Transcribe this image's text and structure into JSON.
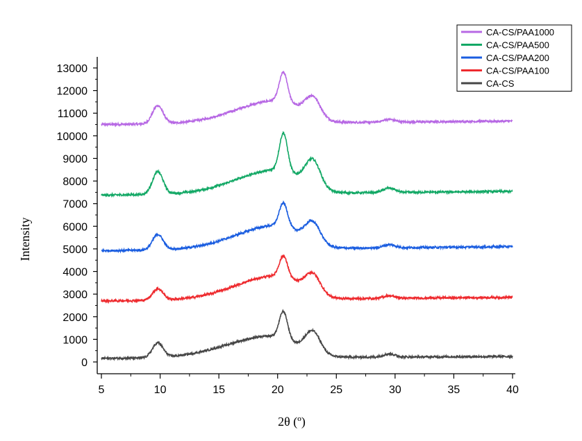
{
  "chart_data": {
    "type": "line",
    "title": "",
    "xlabel": "2θ (º)",
    "ylabel": "Intensity",
    "xlim": [
      5,
      40
    ],
    "ylim": [
      0,
      13000
    ],
    "xticks": [
      5,
      10,
      15,
      20,
      25,
      30,
      35,
      40
    ],
    "yticks": [
      0,
      1000,
      2000,
      3000,
      4000,
      5000,
      6000,
      7000,
      8000,
      9000,
      10000,
      11000,
      12000,
      13000
    ],
    "grid": false,
    "legend_position": "top-right",
    "peaks": [
      {
        "center": 9.8,
        "width": 0.45
      },
      {
        "center": 20.5,
        "width": 0.35
      },
      {
        "center": 23.0,
        "width": 0.65
      },
      {
        "center": 29.5,
        "width": 0.5
      }
    ],
    "series": [
      {
        "name": "CA-CS/PAA1000",
        "color": "#b768e4",
        "baseline": 10500,
        "end": 10650,
        "hump_amp": 1000,
        "hump_center": 20.0,
        "hump_width": 3.5,
        "peak_heights": [
          800,
          1280,
          900,
          120
        ]
      },
      {
        "name": "CA-CS/PAA500",
        "color": "#12a865",
        "baseline": 7380,
        "end": 7540,
        "hump_amp": 1050,
        "hump_center": 20.0,
        "hump_width": 3.5,
        "peak_heights": [
          1000,
          1650,
          1200,
          200
        ]
      },
      {
        "name": "CA-CS/PAA200",
        "color": "#1a5de0",
        "baseline": 4920,
        "end": 5100,
        "hump_amp": 1050,
        "hump_center": 20.0,
        "hump_width": 3.5,
        "peak_heights": [
          680,
          1020,
          900,
          140
        ]
      },
      {
        "name": "CA-CS/PAA100",
        "color": "#ee2a2e",
        "baseline": 2700,
        "end": 2860,
        "hump_amp": 1050,
        "hump_center": 20.0,
        "hump_width": 3.5,
        "peak_heights": [
          500,
          900,
          850,
          110
        ]
      },
      {
        "name": "CA-CS",
        "color": "#464646",
        "baseline": 160,
        "end": 240,
        "hump_amp": 950,
        "hump_center": 19.5,
        "hump_width": 3.8,
        "peak_heights": [
          640,
          1200,
          950,
          140
        ]
      }
    ]
  }
}
